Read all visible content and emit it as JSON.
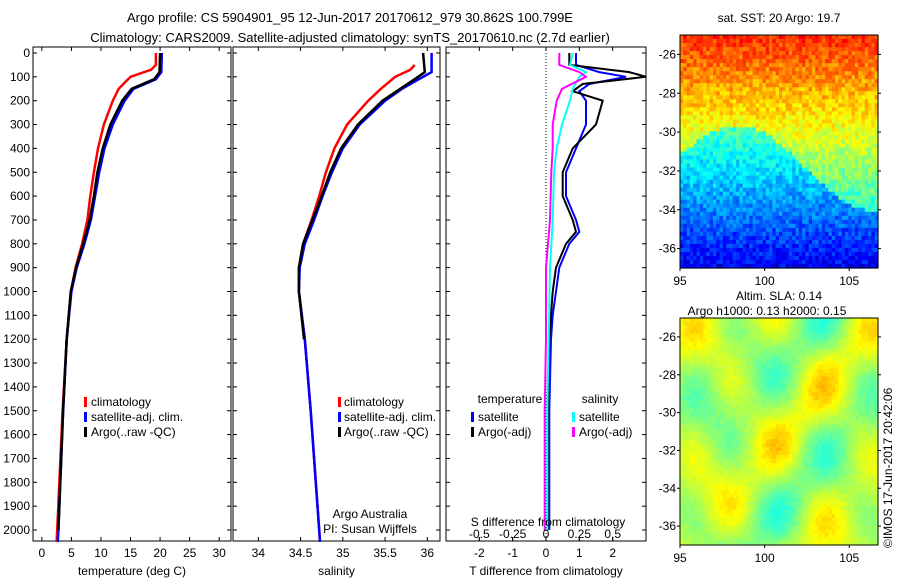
{
  "title_line1": "Argo profile: CS 5904901_95 12-Jun-2017 20170612_979 30.862S 100.799E",
  "title_line2": "Climatology: CARS2009. Satellite-adjusted climatology: synTS_20170610.nc (2.7d earlier)",
  "copyright": "©IMOS 17-Jun-2017 20:42:06",
  "colors": {
    "climatology": "#ff0000",
    "satellite": "#0000ff",
    "argo": "#000000",
    "salinity_satellite": "#00ffff",
    "salinity_argo": "#ff00ff"
  },
  "chart_data": [
    {
      "type": "line",
      "name": "temperature",
      "xlabel": "temperature (deg C)",
      "ylabel": "",
      "xlim": [
        -1.5,
        32
      ],
      "ylim": [
        2050,
        0
      ],
      "xticks": [
        0,
        5,
        10,
        15,
        20,
        25,
        30
      ],
      "yticks": [
        0,
        100,
        200,
        300,
        400,
        500,
        600,
        700,
        800,
        900,
        1000,
        1100,
        1200,
        1300,
        1400,
        1500,
        1600,
        1700,
        1800,
        1900,
        2000
      ],
      "legend": [
        "climatology",
        "satellite-adj. clim.",
        "Argo(..raw -QC)"
      ],
      "series": [
        {
          "name": "climatology",
          "color": "#ff0000",
          "depth": [
            0,
            50,
            70,
            100,
            150,
            200,
            300,
            400,
            500,
            600,
            700,
            800,
            900,
            1000,
            1200,
            1500,
            2000,
            2050
          ],
          "values": [
            19.3,
            19.3,
            18.5,
            15,
            13,
            12,
            10.5,
            9.5,
            8.8,
            8.2,
            7.7,
            6.8,
            5.7,
            4.9,
            4.2,
            3.5,
            2.6,
            2.5
          ]
        },
        {
          "name": "satellite-adj. clim.",
          "color": "#0000ff",
          "depth": [
            0,
            80,
            110,
            150,
            200,
            300,
            400,
            500,
            600,
            700,
            800,
            900,
            1000,
            1200,
            1500,
            2000,
            2050
          ],
          "values": [
            20.3,
            20.2,
            19.3,
            15.5,
            14,
            12,
            10.6,
            9.7,
            9,
            8.3,
            7.2,
            5.9,
            5,
            4.2,
            3.6,
            2.8,
            2.7
          ]
        },
        {
          "name": "Argo(..raw -QC)",
          "color": "#000000",
          "depth": [
            0,
            80,
            110,
            150,
            200,
            300,
            400,
            500,
            600,
            700,
            800,
            900,
            1000,
            1200,
            1500,
            2000
          ],
          "values": [
            20,
            19.9,
            19,
            15.2,
            13.6,
            11.6,
            10.3,
            9.4,
            8.8,
            8.1,
            7,
            5.8,
            4.9,
            4.2,
            3.6,
            2.8
          ]
        }
      ]
    },
    {
      "type": "line",
      "name": "salinity",
      "xlabel": "salinity",
      "xlim": [
        33.7,
        36.15
      ],
      "ylim": [
        2050,
        0
      ],
      "xticks": [
        34,
        34.5,
        35,
        35.5,
        36
      ],
      "xticklabels": [
        "34",
        "34.5",
        "35",
        "35.5",
        "36"
      ],
      "legend": [
        "climatology",
        "satellite-adj. clim.",
        "Argo(..raw -QC)"
      ],
      "annotation": [
        "Argo Australia",
        "PI: Susan Wijffels"
      ],
      "series": [
        {
          "name": "climatology",
          "color": "#ff0000",
          "depth": [
            50,
            70,
            100,
            150,
            200,
            300,
            400,
            500,
            600,
            700,
            800,
            900,
            1000,
            1200,
            1500,
            2000,
            2050
          ],
          "values": [
            35.85,
            35.8,
            35.62,
            35.45,
            35.3,
            35.05,
            34.9,
            34.8,
            34.72,
            34.63,
            34.53,
            34.48,
            34.48,
            34.55,
            34.62,
            34.72,
            34.73
          ]
        },
        {
          "name": "satellite-adj. clim.",
          "color": "#0000ff",
          "depth": [
            0,
            80,
            110,
            150,
            200,
            300,
            400,
            500,
            600,
            700,
            800,
            900,
            1000,
            1200,
            1500,
            2000,
            2050
          ],
          "values": [
            36.05,
            36.05,
            35.9,
            35.7,
            35.5,
            35.2,
            35.0,
            34.87,
            34.76,
            34.66,
            34.55,
            34.49,
            34.48,
            34.55,
            34.62,
            34.72,
            34.73
          ]
        },
        {
          "name": "Argo(..raw -QC)",
          "color": "#000000",
          "depth": [
            0,
            80,
            110,
            150,
            200,
            300,
            400,
            500,
            600,
            700,
            800,
            900,
            1000,
            1200
          ],
          "values": [
            35.95,
            35.97,
            35.85,
            35.68,
            35.47,
            35.18,
            34.98,
            34.85,
            34.75,
            34.64,
            34.53,
            34.48,
            34.48,
            34.54
          ]
        }
      ]
    },
    {
      "type": "line",
      "name": "differences",
      "xlabel": "T difference from climatology",
      "x2label": "S difference from climatology",
      "xlim": [
        -3,
        3
      ],
      "xticks": [
        -2,
        -1,
        0,
        1,
        2
      ],
      "x2ticks": [
        -0.5,
        -0.25,
        0,
        0.25,
        0.5
      ],
      "x2ticklabels": [
        "-0.5",
        "-0.25",
        "0",
        "0.25",
        "0.5"
      ],
      "legend_temperature_title": "temperature",
      "legend_salinity_title": "salinity",
      "legend": [
        "satellite",
        "Argo(-adj)",
        "satellite",
        "Argo(-adj)"
      ],
      "series": [
        {
          "name": "T satellite",
          "color": "#0000ff",
          "depth": [
            0,
            50,
            80,
            100,
            130,
            160,
            200,
            300,
            400,
            500,
            600,
            700,
            750,
            800,
            900,
            1000,
            1100,
            1200,
            1500,
            2000
          ],
          "values": [
            0.9,
            0.9,
            1.6,
            2.4,
            1.3,
            1.0,
            1.2,
            1.2,
            0.9,
            0.6,
            0.6,
            0.9,
            1.0,
            0.7,
            0.4,
            0.3,
            0.2,
            0.15,
            0.1,
            0.1
          ]
        },
        {
          "name": "T Argo",
          "color": "#000000",
          "depth": [
            0,
            50,
            80,
            100,
            130,
            160,
            200,
            300,
            400,
            500,
            600,
            700,
            750,
            800,
            900,
            1000,
            1100,
            1200,
            1500,
            2000
          ],
          "values": [
            0.7,
            0.7,
            2.5,
            3.0,
            1.1,
            0.8,
            1.7,
            1.5,
            0.8,
            0.5,
            0.5,
            0.8,
            0.9,
            0.6,
            0.3,
            0.2,
            0.15,
            0.1,
            0.05,
            0.05
          ]
        },
        {
          "name": "S satellite",
          "color": "#00ffff",
          "depth": [
            0,
            50,
            80,
            100,
            150,
            200,
            300,
            400,
            500,
            700,
            900,
            1200,
            1500,
            2000
          ],
          "values": [
            0.2,
            0.18,
            0.3,
            0.25,
            0.2,
            0.18,
            0.12,
            0.08,
            0.06,
            0.05,
            0.03,
            0.02,
            0.01,
            0.01
          ]
        },
        {
          "name": "S Argo",
          "color": "#ff00ff",
          "depth": [
            0,
            50,
            80,
            100,
            150,
            200,
            300,
            400,
            500,
            700,
            900,
            1200,
            1500,
            2000
          ],
          "values": [
            0.1,
            0.1,
            0.25,
            0.3,
            0.12,
            0.08,
            0.05,
            0.05,
            0.04,
            0.03,
            0.0,
            0.0,
            -0.01,
            -0.01
          ]
        }
      ]
    },
    {
      "type": "heatmap",
      "name": "sat-sst-map",
      "title": "sat. SST: 20 Argo: 19.7",
      "xlim": [
        95,
        106.7
      ],
      "ylim": [
        -37,
        -25
      ],
      "xticks": [
        95,
        100,
        105
      ],
      "yticks": [
        -26,
        -28,
        -30,
        -32,
        -34,
        -36
      ]
    },
    {
      "type": "heatmap",
      "name": "sla-map",
      "title": "Altim. SLA: 0.14",
      "subtitle": "Argo h1000: 0.13 h2000: 0.15",
      "xlim": [
        95,
        106.7
      ],
      "ylim": [
        -37,
        -25
      ],
      "xticks": [
        95,
        100,
        105
      ],
      "yticks": [
        -26,
        -28,
        -30,
        -32,
        -34,
        -36
      ]
    }
  ]
}
